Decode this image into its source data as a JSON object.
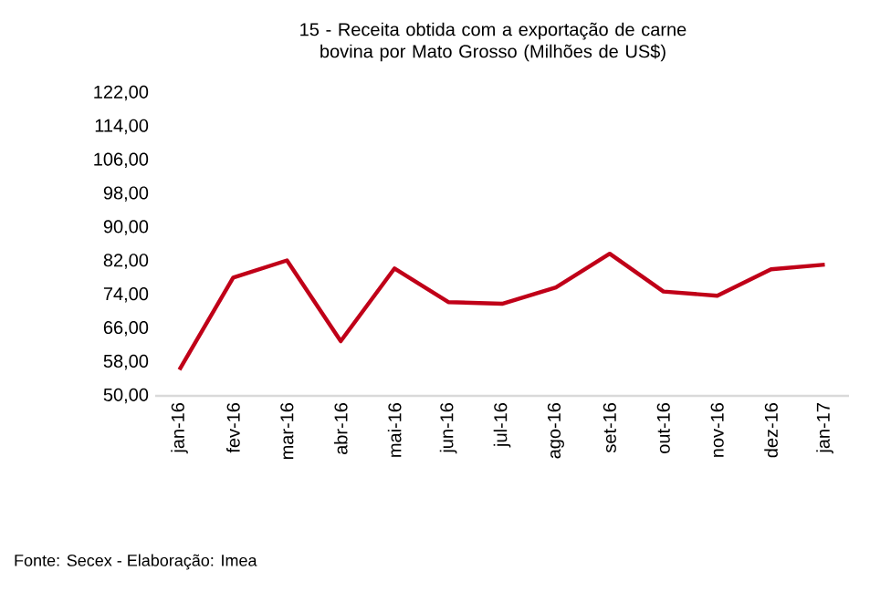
{
  "chart_data": {
    "type": "line",
    "title": "15 - Receita obtida com a exportação de carne bovina por Mato Grosso (Milhões de US$)",
    "categories": [
      "jan-16",
      "fev-16",
      "mar-16",
      "abr-16",
      "mai-16",
      "jun-16",
      "jul-16",
      "ago-16",
      "set-16",
      "out-16",
      "nov-16",
      "dez-16",
      "jan-17"
    ],
    "series": [
      {
        "color": "#c00018",
        "values": [
          56.2,
          78.1,
          82.2,
          63.0,
          80.3,
          72.3,
          71.9,
          75.8,
          83.8,
          74.8,
          73.8,
          80.1,
          81.2
        ]
      }
    ],
    "ylim": [
      50,
      122
    ],
    "yticks": [
      {
        "value": 50,
        "label": "50,00"
      },
      {
        "value": 58,
        "label": "58,00"
      },
      {
        "value": 66,
        "label": "66,00"
      },
      {
        "value": 74,
        "label": "74,00"
      },
      {
        "value": 82,
        "label": "82,00"
      },
      {
        "value": 90,
        "label": "90,00"
      },
      {
        "value": 98,
        "label": "98,00"
      },
      {
        "value": 106,
        "label": "106,00"
      },
      {
        "value": 114,
        "label": "114,00"
      },
      {
        "value": 122,
        "label": "122,00"
      }
    ],
    "annotations": [
      "Fonte: Secex - Elaboração: Imea"
    ],
    "grid": false,
    "marker": "none",
    "line_style": "solid"
  }
}
